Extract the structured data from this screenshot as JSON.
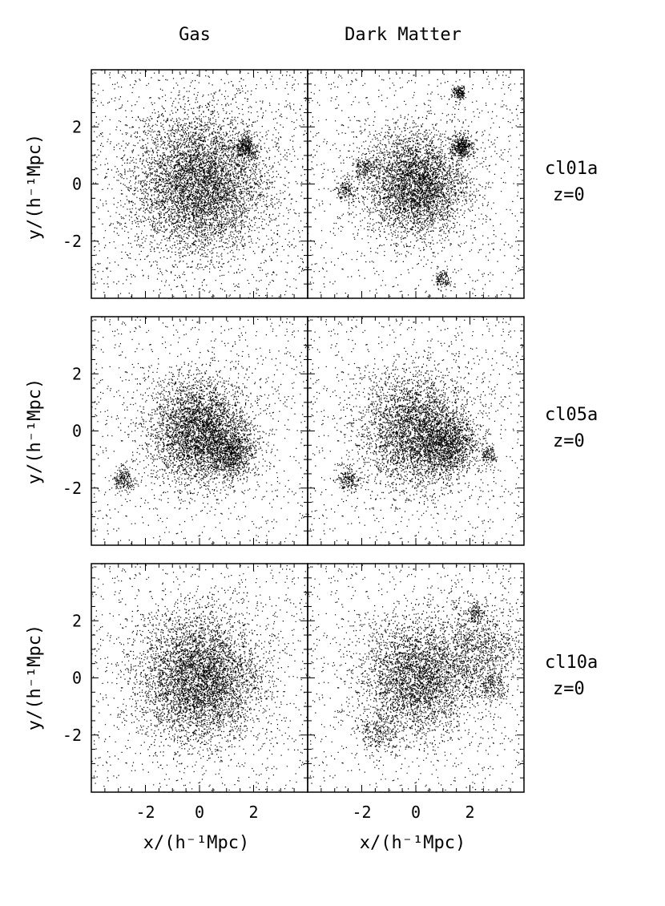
{
  "chart_data": {
    "type": "scatter",
    "description_columns": [
      "Gas",
      "Dark Matter"
    ],
    "xlabel": "x/(h⁻¹Mpc)",
    "ylabel": "y/(h⁻¹Mpc)",
    "xlim": [
      -4,
      4
    ],
    "ylim": [
      -4,
      4
    ],
    "x_ticks": [
      "-2",
      "0",
      "2"
    ],
    "y_ticks": [
      "2",
      "0",
      "-2"
    ],
    "grid": false,
    "rows": [
      {
        "cluster": "cl01a",
        "redshift": "z=0",
        "panels": [
          {
            "column": "Gas",
            "components": [
              {
                "center": [
                  0,
                  0
                ],
                "sigma": 1.2,
                "weight": 1
              },
              {
                "center": [
                  1.7,
                  1.3
                ],
                "sigma": 0.2,
                "weight": 0.06
              }
            ]
          },
          {
            "column": "Dark Matter",
            "components": [
              {
                "center": [
                  0,
                  0
                ],
                "sigma": 0.9,
                "weight": 1
              },
              {
                "center": [
                  1.7,
                  1.3
                ],
                "sigma": 0.2,
                "weight": 0.1
              },
              {
                "center": [
                  1.6,
                  3.2
                ],
                "sigma": 0.12,
                "weight": 0.04
              },
              {
                "center": [
                  -1.9,
                  0.6
                ],
                "sigma": 0.2,
                "weight": 0.05
              },
              {
                "center": [
                  -2.6,
                  -0.2
                ],
                "sigma": 0.2,
                "weight": 0.04
              },
              {
                "center": [
                  1.0,
                  -3.3
                ],
                "sigma": 0.15,
                "weight": 0.03
              }
            ]
          }
        ]
      },
      {
        "cluster": "cl05a",
        "redshift": "z=0",
        "panels": [
          {
            "column": "Gas",
            "components": [
              {
                "center": [
                  0,
                  0
                ],
                "sigma": 0.9,
                "weight": 1
              },
              {
                "center": [
                  1.2,
                  -0.8
                ],
                "sigma": 0.4,
                "weight": 0.2
              },
              {
                "center": [
                  -2.8,
                  -1.7
                ],
                "sigma": 0.2,
                "weight": 0.05
              }
            ]
          },
          {
            "column": "Dark Matter",
            "components": [
              {
                "center": [
                  0,
                  0
                ],
                "sigma": 1.0,
                "weight": 1
              },
              {
                "center": [
                  1.2,
                  -0.5
                ],
                "sigma": 0.5,
                "weight": 0.3
              },
              {
                "center": [
                  -2.5,
                  -1.7
                ],
                "sigma": 0.2,
                "weight": 0.05
              },
              {
                "center": [
                  2.7,
                  -0.8
                ],
                "sigma": 0.15,
                "weight": 0.03
              }
            ]
          }
        ]
      },
      {
        "cluster": "cl10a",
        "redshift": "z=0",
        "panels": [
          {
            "column": "Gas",
            "components": [
              {
                "center": [
                  0,
                  0
                ],
                "sigma": 1.1,
                "weight": 1
              }
            ]
          },
          {
            "column": "Dark Matter",
            "components": [
              {
                "center": [
                  0,
                  0
                ],
                "sigma": 1.0,
                "weight": 1
              },
              {
                "center": [
                  2.3,
                  1.0
                ],
                "sigma": 0.8,
                "weight": 0.35
              },
              {
                "center": [
                  -1.4,
                  -1.9
                ],
                "sigma": 0.35,
                "weight": 0.08
              },
              {
                "center": [
                  2.2,
                  2.3
                ],
                "sigma": 0.15,
                "weight": 0.03
              },
              {
                "center": [
                  2.9,
                  -0.3
                ],
                "sigma": 0.25,
                "weight": 0.05
              }
            ]
          }
        ]
      }
    ]
  }
}
